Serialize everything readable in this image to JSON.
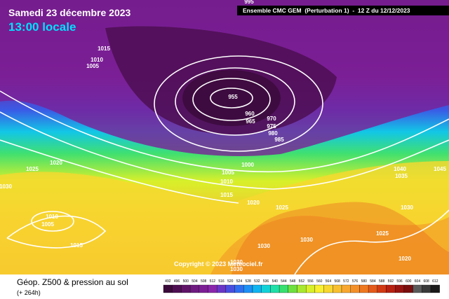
{
  "header": {
    "date": "Samedi 23 décembre 2023",
    "time": "13:00 locale",
    "run": "Ensemble CMC GEM  (Perturbation 1)  -  12 Z du 12/12/2023",
    "copyright": "Copyright © 2023 Meteociel.fr",
    "product": "Géop. Z500 & pression au sol",
    "lead": "(+ 264h)"
  },
  "isobar_labels": [
    "995",
    "1015",
    "1010",
    "1005",
    "955",
    "960",
    "965",
    "970",
    "975",
    "980",
    "985",
    "1000",
    "1005",
    "1010",
    "1015",
    "1020",
    "1025",
    "1030",
    "1010",
    "1005",
    "1015",
    "1020",
    "1025",
    "1030",
    "1030",
    "1030",
    "1030",
    "1035",
    "1040",
    "1045",
    "1030",
    "1025",
    "1020"
  ],
  "legend": {
    "labels": [
      "492",
      "496",
      "500",
      "504",
      "508",
      "512",
      "516",
      "520",
      "524",
      "528",
      "532",
      "536",
      "540",
      "544",
      "548",
      "552",
      "556",
      "560",
      "564",
      "568",
      "572",
      "576",
      "580",
      "584",
      "588",
      "592",
      "596",
      "600",
      "604",
      "608",
      "612"
    ],
    "colors": [
      "#3a0a3a",
      "#4e0e52",
      "#5f1468",
      "#6e1a80",
      "#7c1f96",
      "#8a26ac",
      "#6a36c8",
      "#4a4ee0",
      "#2f6ef0",
      "#1e90f5",
      "#10b4f0",
      "#12d2d8",
      "#1ee0a8",
      "#38e070",
      "#6ee040",
      "#a8e830",
      "#d8f02a",
      "#f8f030",
      "#f8d830",
      "#f8c030",
      "#f8a830",
      "#f49028",
      "#ee7820",
      "#e45a1a",
      "#d23a14",
      "#b82010",
      "#981410",
      "#7a0e0e",
      "#5a5a5a",
      "#3a3a3a",
      "#1a1a1a"
    ]
  }
}
